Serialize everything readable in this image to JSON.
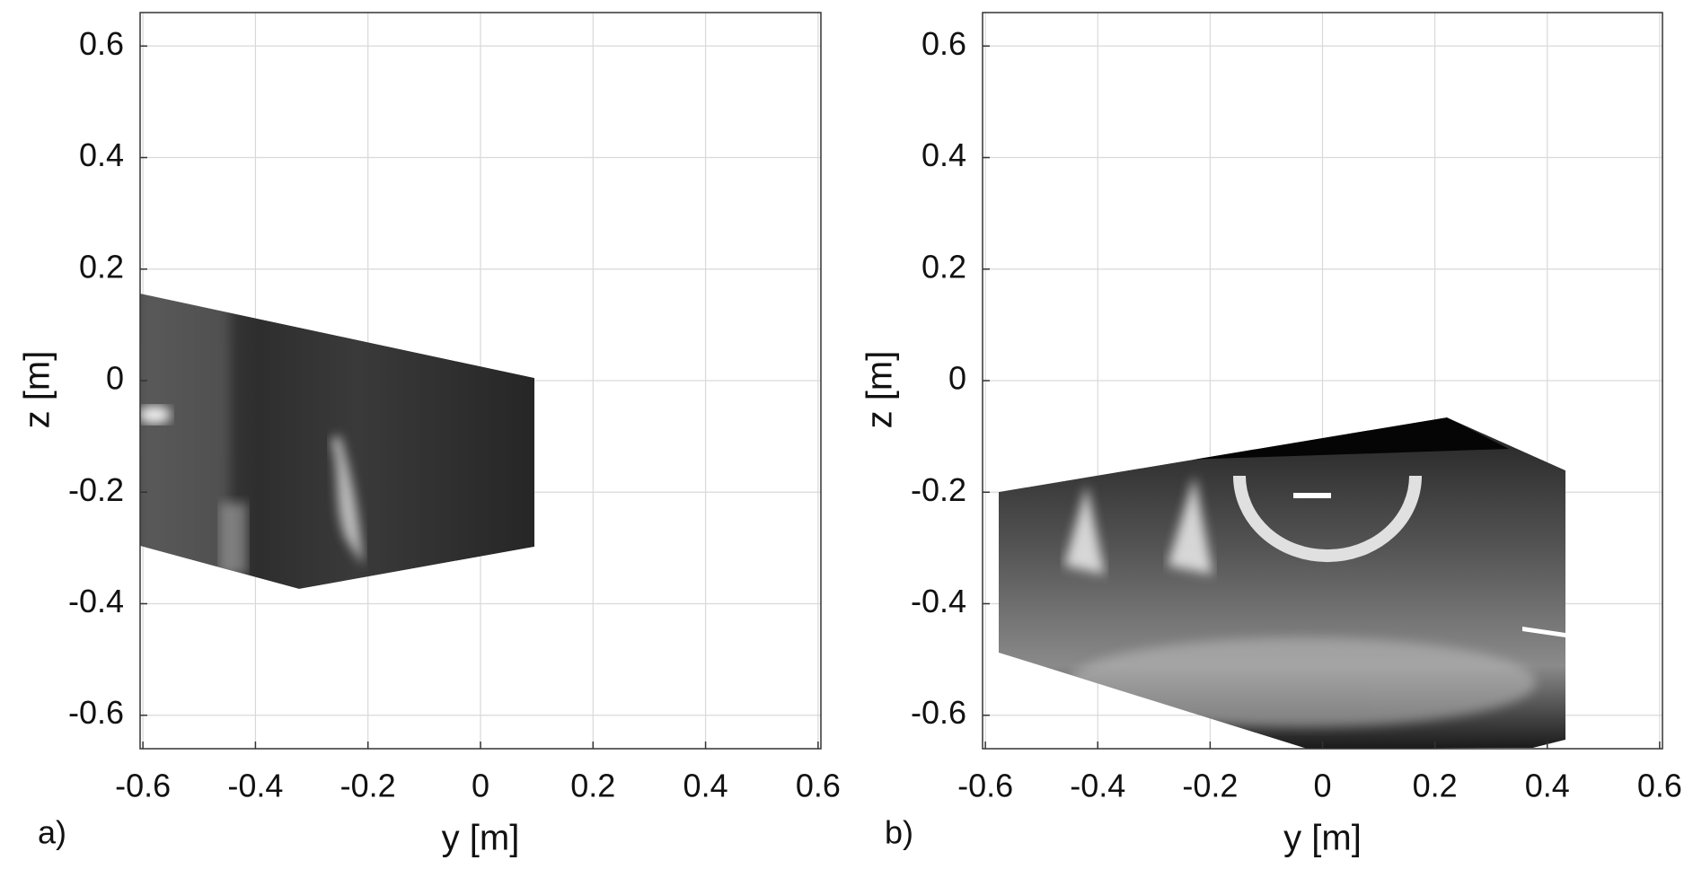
{
  "chart_data": [
    {
      "type": "image",
      "panel_label": "a)",
      "xlabel": "y [m]",
      "ylabel": "z [m]",
      "xlim": [
        -0.605,
        0.605
      ],
      "ylim": [
        -0.66,
        0.66
      ],
      "xticks": [
        -0.6,
        -0.4,
        -0.2,
        0,
        0.2,
        0.4,
        0.6
      ],
      "yticks": [
        -0.6,
        -0.4,
        -0.2,
        0,
        0.2,
        0.4,
        0.6
      ],
      "grid": true
    },
    {
      "type": "image",
      "panel_label": "b)",
      "xlabel": "y [m]",
      "ylabel": "z [m]",
      "xlim": [
        -0.605,
        0.605
      ],
      "ylim": [
        -0.66,
        0.66
      ],
      "xticks": [
        -0.6,
        -0.4,
        -0.2,
        0,
        0.2,
        0.4,
        0.6
      ],
      "yticks": [
        -0.6,
        -0.4,
        -0.2,
        0,
        0.2,
        0.4,
        0.6
      ],
      "grid": true
    }
  ]
}
